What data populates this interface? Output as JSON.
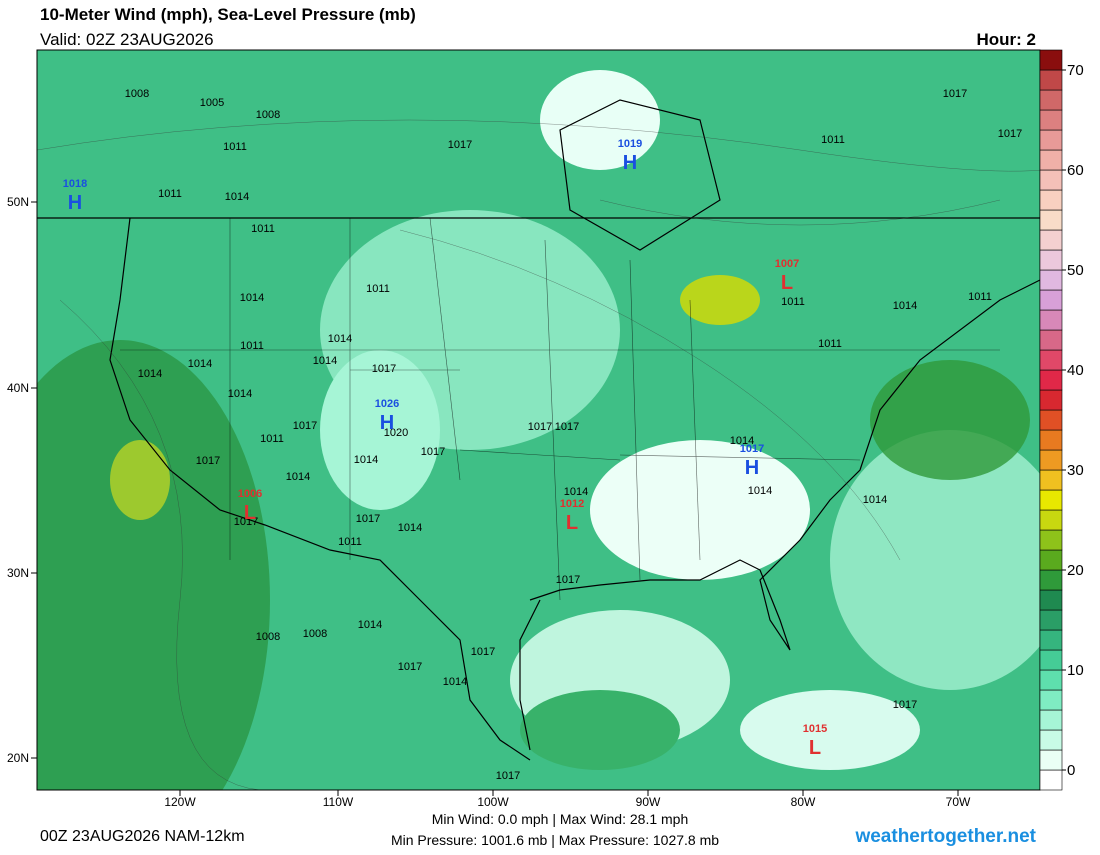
{
  "header": {
    "title": "10-Meter Wind (mph), Sea-Level Pressure (mb)",
    "valid": "Valid: 02Z 23AUG2026",
    "hour": "Hour: 2"
  },
  "map": {
    "lat_labels": [
      "50N",
      "40N",
      "30N",
      "20N"
    ],
    "lon_labels": [
      "120W",
      "110W",
      "100W",
      "90W",
      "80W",
      "70W"
    ],
    "pressure_centers": [
      {
        "symbol": "H",
        "value": "1019"
      },
      {
        "symbol": "H",
        "value": "1018"
      },
      {
        "symbol": "H",
        "value": "1026"
      },
      {
        "symbol": "H",
        "value": "1017"
      },
      {
        "symbol": "L",
        "value": "1007"
      },
      {
        "symbol": "L",
        "value": "1006"
      },
      {
        "symbol": "L",
        "value": "1012"
      },
      {
        "symbol": "L",
        "value": "1015"
      }
    ],
    "isobar_labels": [
      "1008",
      "1005",
      "1008",
      "1011",
      "1011",
      "1014",
      "1011",
      "1017",
      "1017",
      "1011",
      "1014",
      "1011",
      "1014",
      "1014",
      "1011",
      "1014",
      "1014",
      "1017",
      "1017",
      "1011",
      "1014",
      "1017",
      "1014",
      "1017",
      "1014",
      "1014",
      "1008",
      "1014",
      "1011",
      "1014",
      "1017",
      "1017",
      "1014",
      "1017",
      "1014",
      "1014",
      "1017",
      "1011",
      "1011",
      "1008",
      "1017",
      "1020",
      "1017",
      "1017",
      "1017",
      "1011",
      "1014",
      "1017",
      "1014",
      "1017"
    ]
  },
  "colorbar": {
    "lim": [
      -2,
      72
    ],
    "ticks": [
      0,
      10,
      20,
      30,
      40,
      50,
      60,
      70
    ],
    "colors": [
      "#ffffff",
      "#eafff5",
      "#c8fbe6",
      "#a6f5d6",
      "#7fecc2",
      "#5edfad",
      "#45cc96",
      "#35b57e",
      "#2a9e66",
      "#1f8a50",
      "#2f9a3a",
      "#5aaa1e",
      "#8ec21a",
      "#c8d810",
      "#e8e800",
      "#f0c020",
      "#ee9a22",
      "#e87a20",
      "#e05025",
      "#d82830",
      "#e02848",
      "#e04868",
      "#d86888",
      "#d888b8",
      "#d8a0d8",
      "#e0b8e0",
      "#ecc8dc",
      "#f4d0d0",
      "#f8dcc8",
      "#f8d0c0",
      "#f4c0b8",
      "#f0b0a8",
      "#e89a98",
      "#dc8080",
      "#d06868",
      "#c04848",
      "#8a0e0e"
    ]
  },
  "footer": {
    "run": "00Z 23AUG2026 NAM-12km",
    "wind": "Min Wind:  0.0 mph | Max Wind: 28.1 mph",
    "pressure": "Min Pressure: 1001.6 mb | Max Pressure: 1027.8 mb",
    "site": "weathertogether.net"
  }
}
